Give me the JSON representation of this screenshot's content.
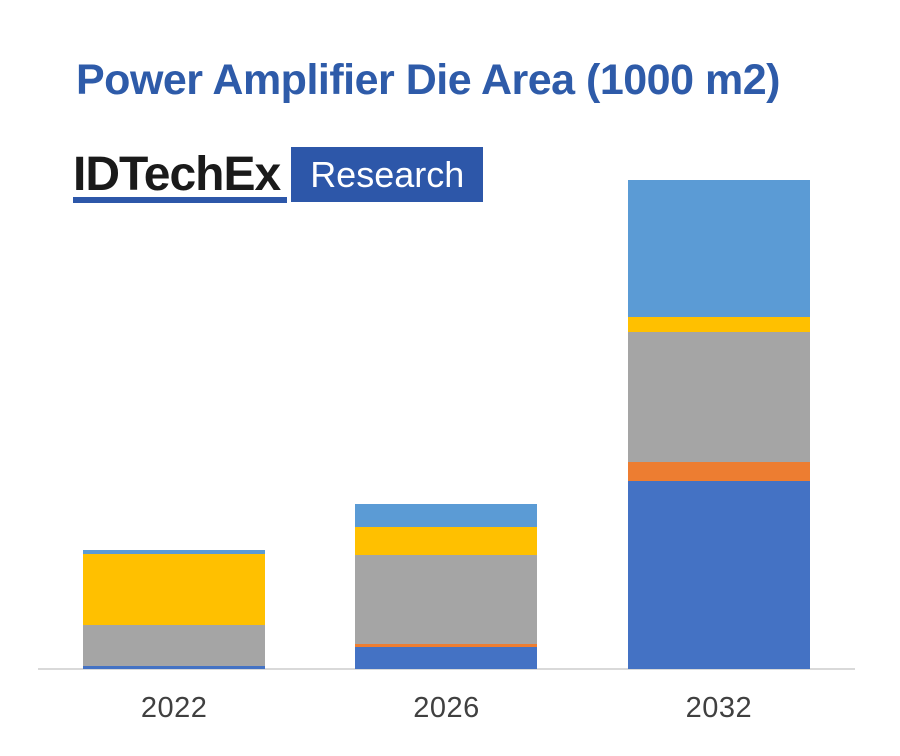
{
  "page": {
    "background": "#FFFFFF",
    "title": "Power Amplifier Die Area (1000 m2)",
    "title_color": "#2E5BA9"
  },
  "logo": {
    "brand": "IDTechEx",
    "suffix": "Research",
    "brand_color": "#1A1A1A",
    "accent_blue": "#2D57A9",
    "suffix_text_color": "#FFFFFF"
  },
  "chart_data": {
    "type": "bar",
    "stacked": true,
    "title": "Power Amplifier Die Area (1000 m2)",
    "categories": [
      "2022",
      "2026",
      "2032"
    ],
    "series": [
      {
        "name": "series-1-dark-blue",
        "color": "#4472C4",
        "values": [
          3,
          22,
          188
        ]
      },
      {
        "name": "series-2-orange",
        "color": "#ED7D31",
        "values": [
          0,
          3,
          19
        ]
      },
      {
        "name": "series-3-gray",
        "color": "#A5A5A5",
        "values": [
          41,
          89,
          130
        ]
      },
      {
        "name": "series-4-gold",
        "color": "#FFC000",
        "values": [
          71,
          28,
          15
        ]
      },
      {
        "name": "series-5-light-blue",
        "color": "#5B9BD5",
        "values": [
          4,
          23,
          137
        ]
      }
    ],
    "stack_totals": [
      119,
      165,
      489
    ],
    "xlabel": "",
    "ylabel": "",
    "ylim": [
      0,
      500
    ],
    "y_axis_visible": false,
    "gridlines": false,
    "legend": "none",
    "axis_line_color": "#D9D9D9",
    "category_label_color": "#404040"
  }
}
